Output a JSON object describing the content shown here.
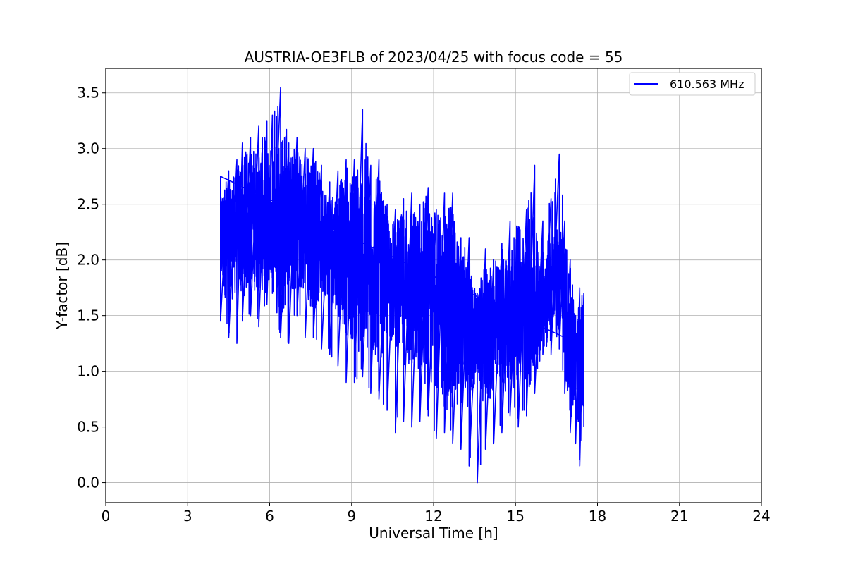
{
  "chart_data": {
    "type": "line",
    "title": "AUSTRIA-OE3FLB of 2023/04/25 with focus code = 55",
    "xlabel": "Universal Time [h]",
    "ylabel": "Y-factor [dB]",
    "xlim": [
      0,
      24
    ],
    "ylim": [
      -0.18,
      3.72
    ],
    "xticks": [
      0,
      3,
      6,
      9,
      12,
      15,
      18,
      21,
      24
    ],
    "xtick_labels": [
      "0",
      "3",
      "6",
      "9",
      "12",
      "15",
      "18",
      "21",
      "24"
    ],
    "yticks": [
      0.0,
      0.5,
      1.0,
      1.5,
      2.0,
      2.5,
      3.0,
      3.5
    ],
    "ytick_labels": [
      "0.0",
      "0.5",
      "1.0",
      "1.5",
      "2.0",
      "2.5",
      "3.0",
      "3.5"
    ],
    "grid": true,
    "legend_position": "top-right",
    "series": [
      {
        "name": "610.563 MHz",
        "color": "#0000ff",
        "x": [
          4.2,
          4.5,
          4.8,
          5.0,
          5.3,
          5.6,
          5.9,
          6.1,
          6.4,
          6.7,
          7.0,
          7.3,
          7.6,
          7.9,
          8.2,
          8.5,
          8.8,
          9.1,
          9.4,
          9.7,
          10.0,
          10.3,
          10.6,
          10.9,
          11.2,
          11.5,
          11.8,
          12.1,
          12.4,
          12.7,
          13.0,
          13.3,
          13.6,
          13.9,
          14.2,
          14.5,
          14.8,
          15.1,
          15.4,
          15.7,
          16.0,
          16.3,
          16.6,
          16.8,
          17.0,
          17.2,
          17.35,
          17.5
        ],
        "mean": [
          2.2,
          2.15,
          2.25,
          2.3,
          2.35,
          2.4,
          2.4,
          2.4,
          2.35,
          2.35,
          2.3,
          2.3,
          2.2,
          2.2,
          2.15,
          2.1,
          2.05,
          2.0,
          2.0,
          1.95,
          1.9,
          1.85,
          1.8,
          1.75,
          1.7,
          1.7,
          1.65,
          1.6,
          1.55,
          1.5,
          1.4,
          1.35,
          1.3,
          1.3,
          1.35,
          1.45,
          1.5,
          1.55,
          1.6,
          1.65,
          1.7,
          1.75,
          1.8,
          1.6,
          1.2,
          1.1,
          0.9,
          1.2
        ],
        "min": [
          1.45,
          1.3,
          1.25,
          1.45,
          1.5,
          1.4,
          1.6,
          1.7,
          1.3,
          1.25,
          1.5,
          1.3,
          1.3,
          1.2,
          1.15,
          1.05,
          0.9,
          0.9,
          0.95,
          0.8,
          0.75,
          0.65,
          0.45,
          0.55,
          0.5,
          0.55,
          0.6,
          0.4,
          0.45,
          0.35,
          0.3,
          0.15,
          0.0,
          0.3,
          0.35,
          0.45,
          0.6,
          0.5,
          0.6,
          0.8,
          1.15,
          1.15,
          1.2,
          0.8,
          0.45,
          0.35,
          0.15,
          0.5
        ],
        "max": [
          2.75,
          2.8,
          2.9,
          3.05,
          3.1,
          3.2,
          3.25,
          3.3,
          3.55,
          3.05,
          3.1,
          3.0,
          3.0,
          2.85,
          2.7,
          2.8,
          2.9,
          2.9,
          3.35,
          2.85,
          2.9,
          2.5,
          2.45,
          2.55,
          2.6,
          2.5,
          2.65,
          2.45,
          2.6,
          2.6,
          2.2,
          2.2,
          1.7,
          2.1,
          2.0,
          2.15,
          2.35,
          2.3,
          2.45,
          2.85,
          2.35,
          2.55,
          2.95,
          2.35,
          2.0,
          1.5,
          1.75,
          1.7
        ]
      }
    ]
  }
}
